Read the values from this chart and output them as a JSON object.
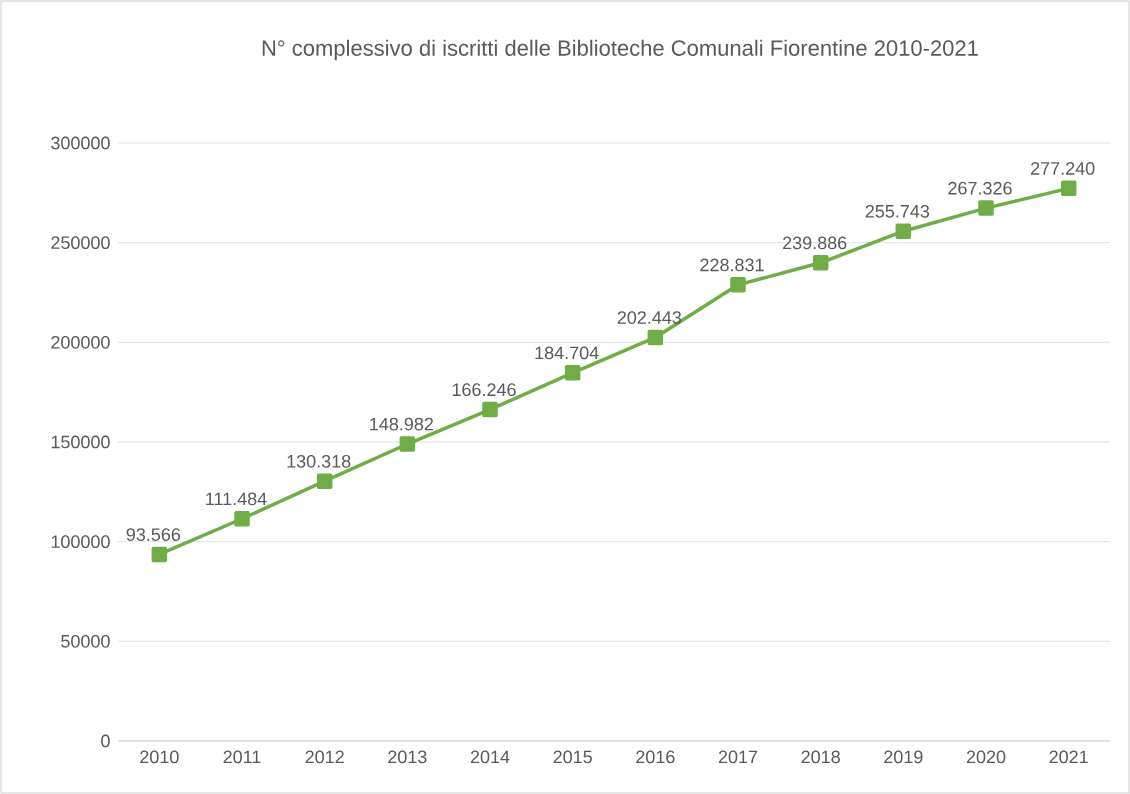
{
  "chart_data": {
    "type": "line",
    "title": "N° complessivo di iscritti delle Biblioteche Comunali Fiorentine 2010-2021",
    "categories": [
      "2010",
      "2011",
      "2012",
      "2013",
      "2014",
      "2015",
      "2016",
      "2017",
      "2018",
      "2019",
      "2020",
      "2021"
    ],
    "values": [
      93566,
      111484,
      130318,
      148982,
      166246,
      184704,
      202443,
      228831,
      239886,
      255743,
      267326,
      277240
    ],
    "value_labels": [
      "93.566",
      "111.484",
      "130.318",
      "148.982",
      "166.246",
      "184.704",
      "202.443",
      "228.831",
      "239.886",
      "255.743",
      "267.326",
      "277.240"
    ],
    "color": "#70ad47",
    "marker": "square",
    "line_style": "solid",
    "ylim": [
      0,
      300000
    ],
    "yticks": [
      0,
      50000,
      100000,
      150000,
      200000,
      250000,
      300000
    ],
    "grid": "y",
    "legend": false
  }
}
